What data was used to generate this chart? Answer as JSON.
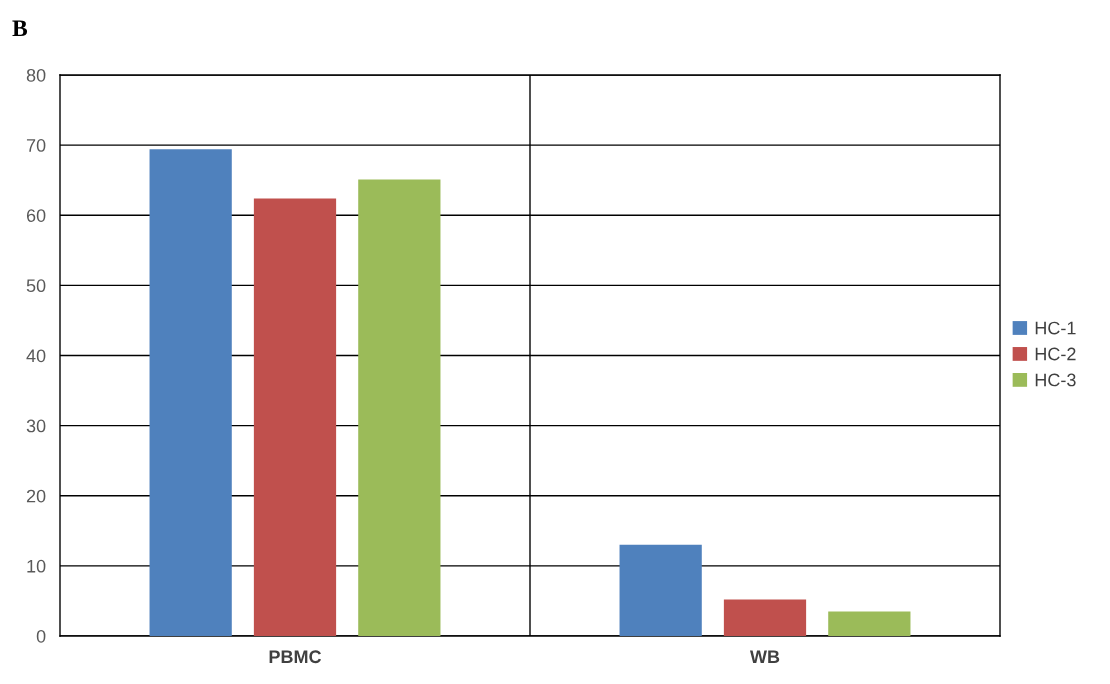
{
  "chart_data": {
    "type": "bar",
    "title": "B",
    "categories": [
      "PBMC",
      "WB"
    ],
    "series": [
      {
        "name": "HC-1",
        "color": "#4f81bd",
        "values": [
          69.4,
          13.0
        ]
      },
      {
        "name": "HC-2",
        "color": "#c0504d",
        "values": [
          62.4,
          5.2
        ]
      },
      {
        "name": "HC-3",
        "color": "#9bbb59",
        "values": [
          65.1,
          3.5
        ]
      }
    ],
    "ylim": [
      0,
      80
    ],
    "yticks": [
      0,
      10,
      20,
      30,
      40,
      50,
      60,
      70,
      80
    ],
    "grid": true,
    "legend": "right"
  }
}
